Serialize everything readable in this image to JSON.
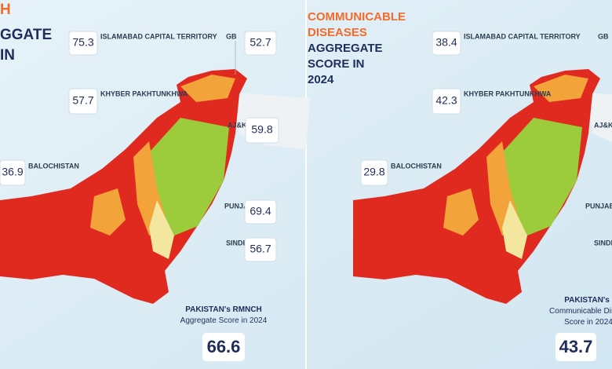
{
  "left_panel": {
    "title_lines": [
      "H",
      "GGATE",
      "IN"
    ],
    "regions": [
      {
        "name": "ISLAMABAD CAPITAL TERRITORY",
        "score": 75.3
      },
      {
        "name": "GB",
        "score": 52.7
      },
      {
        "name": "KHYBER PAKHTUNKHWA",
        "score": 57.7
      },
      {
        "name": "AJ&K",
        "score": 59.8
      },
      {
        "name": "BALOCHISTAN",
        "score": 36.9
      },
      {
        "name": "PUNJAB",
        "score": 69.4
      },
      {
        "name": "SINDH",
        "score": 56.7
      }
    ],
    "national": {
      "line1": "PAKISTAN's RMNCH",
      "line2": "Aggregate Score in 2024",
      "score": 66.6
    }
  },
  "right_panel": {
    "title_lines": [
      "COMMUNICABLE",
      "DISEASES",
      "AGGREGATE",
      "SCORE IN",
      "2024"
    ],
    "regions": [
      {
        "name": "ISLAMABAD CAPITAL TERRITORY",
        "score": 38.4
      },
      {
        "name": "GB"
      },
      {
        "name": "KHYBER PAKHTUNKHWA",
        "score": 42.3
      },
      {
        "name": "AJ&K"
      },
      {
        "name": "BALOCHISTAN",
        "score": 29.8
      },
      {
        "name": "PUNJAB"
      },
      {
        "name": "SINDH"
      }
    ],
    "national": {
      "line1": "PAKISTAN's",
      "line2": "Communicable Dis",
      "line3": "Score in 2024",
      "score": 43.7
    }
  }
}
